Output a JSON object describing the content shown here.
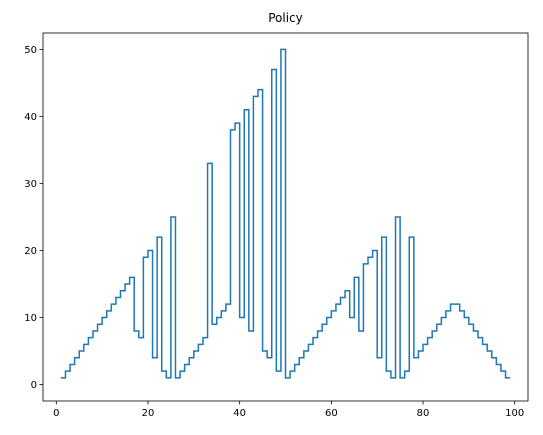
{
  "chart_data": {
    "type": "line",
    "title": "Policy",
    "xlabel": "",
    "ylabel": "",
    "xlim": [
      -2.9,
      102.9
    ],
    "ylim": [
      -2.45,
      52.45
    ],
    "xticks": [
      0,
      20,
      40,
      60,
      80,
      100
    ],
    "yticks": [
      0,
      10,
      20,
      30,
      40,
      50
    ],
    "grid": false,
    "line_color": "#1f77b4",
    "series": [
      {
        "x": [
          1,
          2,
          3,
          4,
          5,
          6,
          7,
          8,
          9,
          10,
          11,
          12,
          13,
          14,
          15,
          16,
          17,
          18,
          19,
          20,
          21,
          22,
          23,
          24,
          25,
          26,
          27,
          28,
          29,
          30,
          31,
          32,
          33,
          34,
          35,
          36,
          37,
          38,
          39,
          40,
          41,
          42,
          43,
          44,
          45,
          46,
          47,
          48,
          49,
          50,
          51,
          52,
          53,
          54,
          55,
          56,
          57,
          58,
          59,
          60,
          61,
          62,
          63,
          64,
          65,
          66,
          67,
          68,
          69,
          70,
          71,
          72,
          73,
          74,
          75,
          76,
          77,
          78,
          79,
          80,
          81,
          82,
          83,
          84,
          85,
          86,
          87,
          88,
          89,
          90,
          91,
          92,
          93,
          94,
          95,
          96,
          97,
          98,
          99
        ],
        "values": [
          1,
          2,
          3,
          4,
          5,
          6,
          7,
          8,
          9,
          10,
          11,
          12,
          13,
          14,
          15,
          16,
          8,
          7,
          19,
          20,
          4,
          22,
          2,
          1,
          25,
          1,
          2,
          3,
          4,
          5,
          6,
          7,
          33,
          9,
          10,
          11,
          12,
          38,
          39,
          10,
          41,
          8,
          43,
          44,
          5,
          4,
          47,
          2,
          50,
          1,
          2,
          3,
          4,
          5,
          6,
          7,
          8,
          9,
          10,
          11,
          12,
          13,
          14,
          10,
          16,
          8,
          18,
          19,
          20,
          4,
          22,
          2,
          1,
          25,
          1,
          2,
          22,
          4,
          5,
          6,
          7,
          8,
          9,
          10,
          11,
          12,
          12,
          11,
          10,
          9,
          8,
          7,
          6,
          5,
          4,
          3,
          2,
          1,
          1
        ]
      }
    ]
  }
}
